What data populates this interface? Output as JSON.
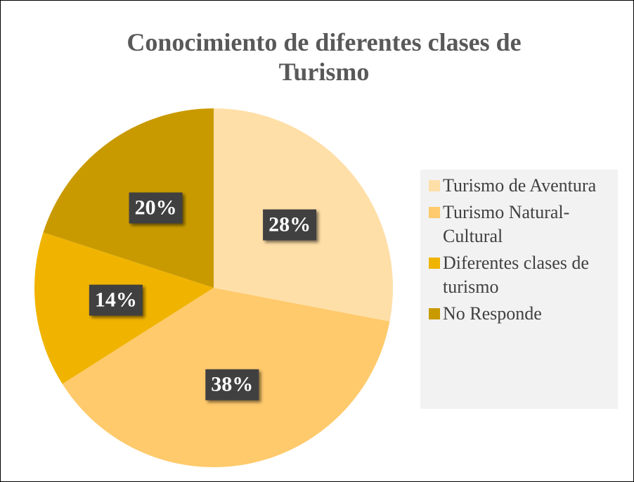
{
  "chart_data": {
    "type": "pie",
    "title": "Conocimiento de diferentes clases de Turismo",
    "categories": [
      "Turismo de Aventura",
      "Turismo Natural-Cultural",
      "Diferentes clases de turismo",
      "No Responde"
    ],
    "values": [
      28,
      38,
      14,
      20
    ],
    "value_labels": [
      "28%",
      "38%",
      "14%",
      "20%"
    ],
    "colors": [
      "#FFDFA8",
      "#FFCA6C",
      "#F0B400",
      "#C99A00"
    ],
    "legend": "right"
  }
}
